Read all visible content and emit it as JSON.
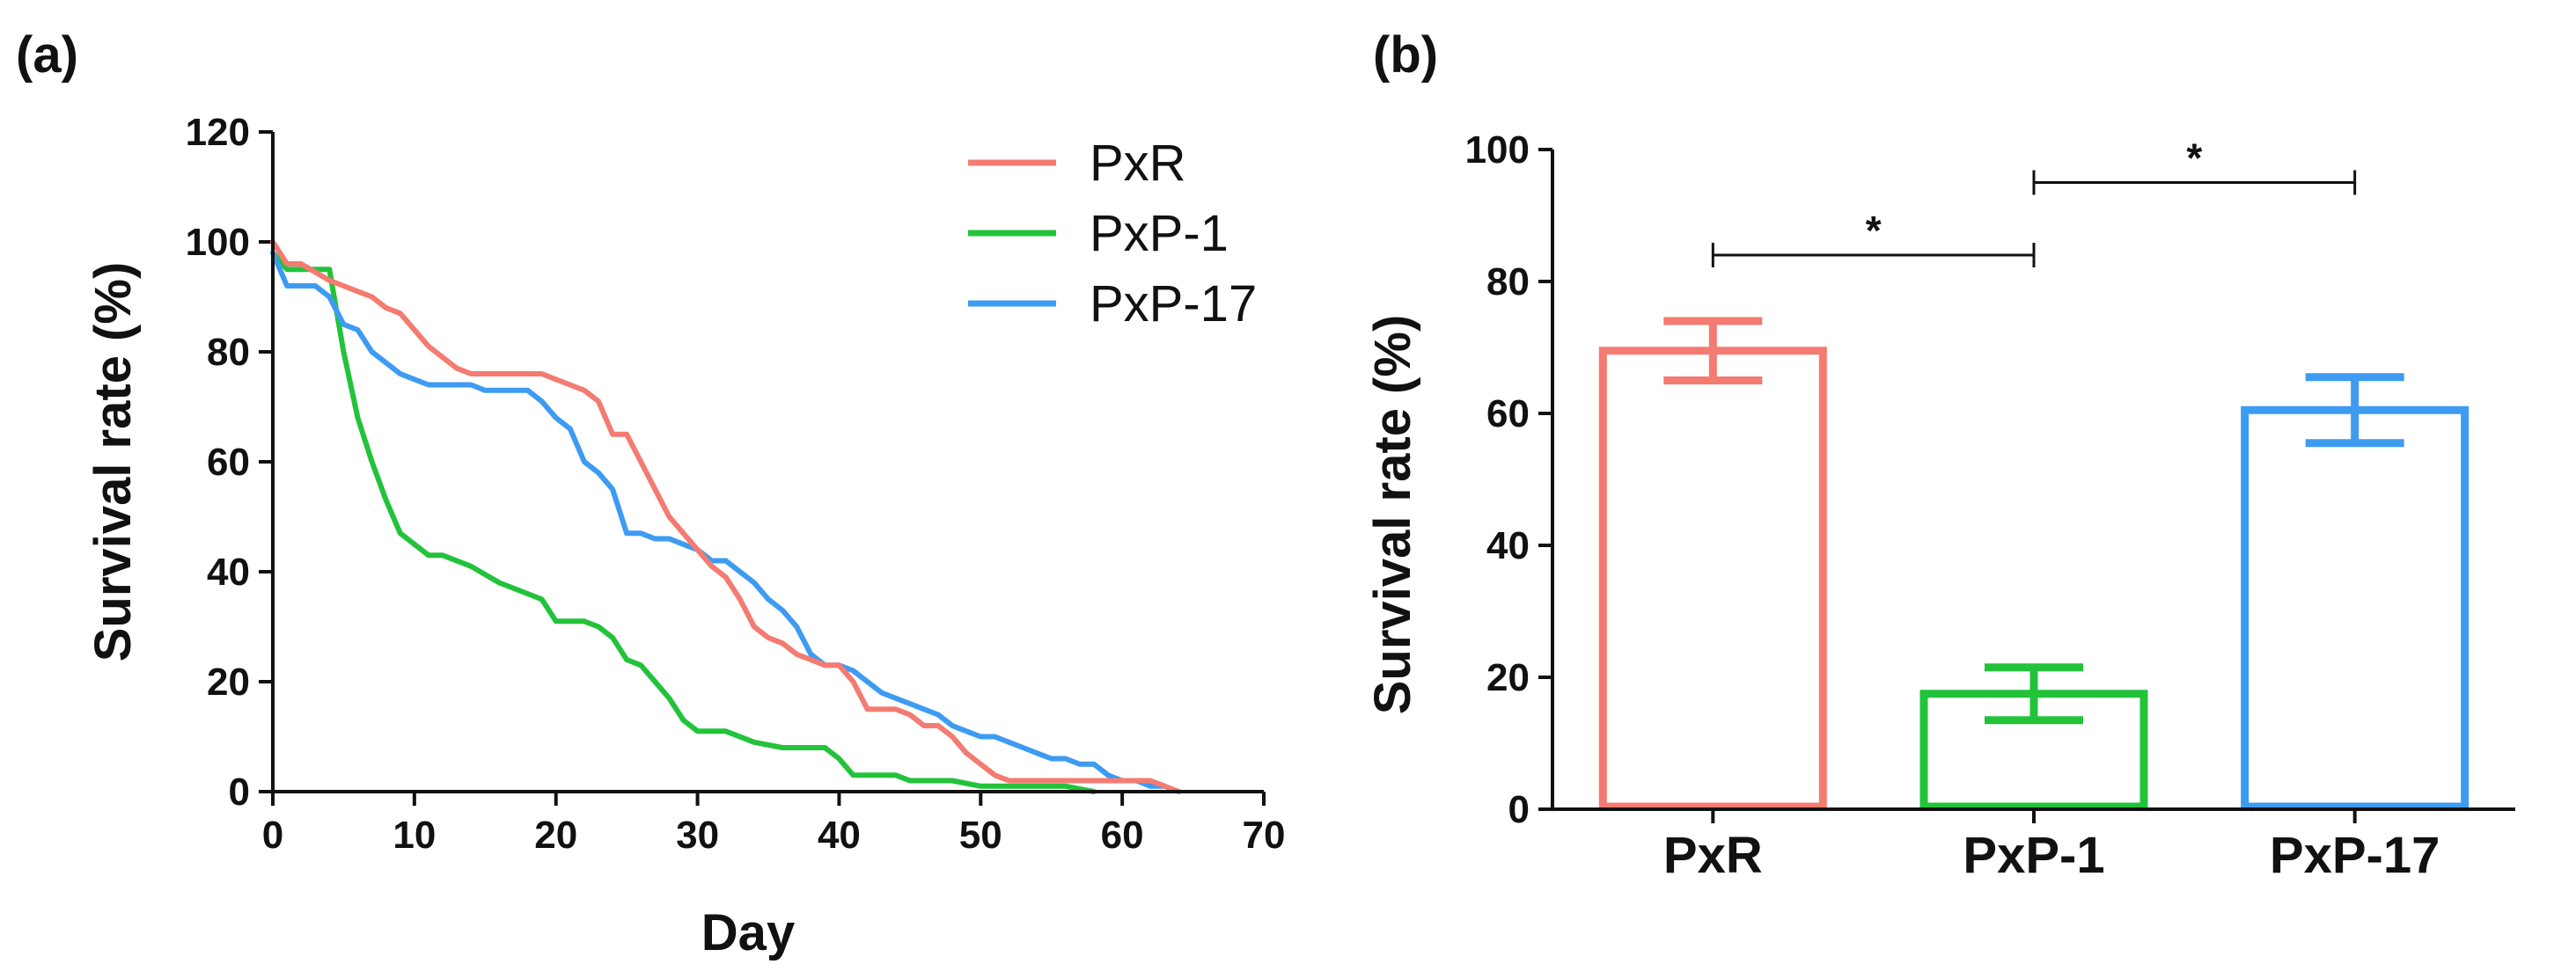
{
  "chart_data": [
    {
      "panel_label": "(a)",
      "type": "line",
      "xlabel": "Day",
      "ylabel": "Survival rate (%)",
      "xlim": [
        0,
        70
      ],
      "ylim": [
        0,
        120
      ],
      "xticks": [
        0,
        10,
        20,
        30,
        40,
        50,
        60,
        70
      ],
      "yticks": [
        0,
        20,
        40,
        60,
        80,
        100,
        120
      ],
      "legend_position": "top-right",
      "series": [
        {
          "name": "PxR",
          "color": "#f47b72",
          "x": [
            0,
            1,
            2,
            4,
            5,
            6,
            7,
            8,
            9,
            10,
            11,
            12,
            13,
            14,
            15,
            16,
            17,
            18,
            19,
            20,
            21,
            22,
            23,
            24,
            25,
            26,
            27,
            28,
            29,
            30,
            31,
            32,
            33,
            34,
            35,
            36,
            37,
            38,
            39,
            40,
            41,
            42,
            43,
            44,
            45,
            46,
            47,
            48,
            49,
            50,
            51,
            52,
            53,
            55,
            57,
            60,
            62,
            64
          ],
          "y": [
            100,
            96,
            96,
            93,
            92,
            91,
            90,
            88,
            87,
            84,
            81,
            79,
            77,
            76,
            76,
            76,
            76,
            76,
            76,
            75,
            74,
            73,
            71,
            65,
            65,
            60,
            55,
            50,
            47,
            44,
            41,
            39,
            35,
            30,
            28,
            27,
            25,
            24,
            23,
            23,
            20,
            15,
            15,
            15,
            14,
            12,
            12,
            10,
            7,
            5,
            3,
            2,
            2,
            2,
            2,
            2,
            2,
            0
          ]
        },
        {
          "name": "PxP-1",
          "color": "#22c33a",
          "x": [
            0,
            1,
            2,
            3,
            4,
            5,
            6,
            7,
            8,
            9,
            10,
            11,
            12,
            14,
            16,
            18,
            19,
            20,
            22,
            23,
            24,
            25,
            26,
            27,
            28,
            29,
            30,
            32,
            34,
            36,
            38,
            39,
            40,
            41,
            42,
            44,
            45,
            46,
            48,
            50,
            52,
            54,
            56,
            58
          ],
          "y": [
            98,
            95,
            95,
            95,
            95,
            80,
            68,
            60,
            53,
            47,
            45,
            43,
            43,
            41,
            38,
            36,
            35,
            31,
            31,
            30,
            28,
            24,
            23,
            20,
            17,
            13,
            11,
            11,
            9,
            8,
            8,
            8,
            6,
            3,
            3,
            3,
            2,
            2,
            2,
            1,
            1,
            1,
            1,
            0
          ]
        },
        {
          "name": "PxP-17",
          "color": "#3d9bf2",
          "x": [
            0,
            1,
            2,
            3,
            4,
            5,
            6,
            7,
            8,
            9,
            10,
            11,
            12,
            13,
            14,
            15,
            16,
            17,
            18,
            19,
            20,
            21,
            22,
            23,
            24,
            25,
            26,
            27,
            28,
            29,
            30,
            31,
            32,
            33,
            34,
            35,
            36,
            37,
            38,
            39,
            40,
            41,
            42,
            43,
            44,
            45,
            46,
            47,
            48,
            49,
            50,
            51,
            52,
            53,
            54,
            55,
            56,
            57,
            58,
            59,
            60,
            61,
            62,
            63
          ],
          "y": [
            98,
            92,
            92,
            92,
            90,
            85,
            84,
            80,
            78,
            76,
            75,
            74,
            74,
            74,
            74,
            73,
            73,
            73,
            73,
            71,
            68,
            66,
            60,
            58,
            55,
            47,
            47,
            46,
            46,
            45,
            44,
            42,
            42,
            40,
            38,
            35,
            33,
            30,
            25,
            23,
            23,
            22,
            20,
            18,
            17,
            16,
            15,
            14,
            12,
            11,
            10,
            10,
            9,
            8,
            7,
            6,
            6,
            5,
            5,
            3,
            2,
            2,
            1,
            1
          ]
        }
      ]
    },
    {
      "panel_label": "(b)",
      "type": "bar",
      "xlabel": "",
      "ylabel": "Survival  rate (%)",
      "ylim": [
        0,
        100
      ],
      "yticks": [
        0,
        20,
        40,
        60,
        80,
        100
      ],
      "categories": [
        "PxR",
        "PxP-1",
        "PxP-17"
      ],
      "values": [
        69.5,
        17.5,
        60.5
      ],
      "error": [
        4.5,
        4.0,
        5.0
      ],
      "colors": [
        "#f47b72",
        "#22c33a",
        "#3d9bf2"
      ],
      "significance": [
        {
          "from": 0,
          "to": 1,
          "y": 84,
          "label": "*"
        },
        {
          "from": 1,
          "to": 2,
          "y": 95,
          "label": "*"
        }
      ]
    }
  ]
}
